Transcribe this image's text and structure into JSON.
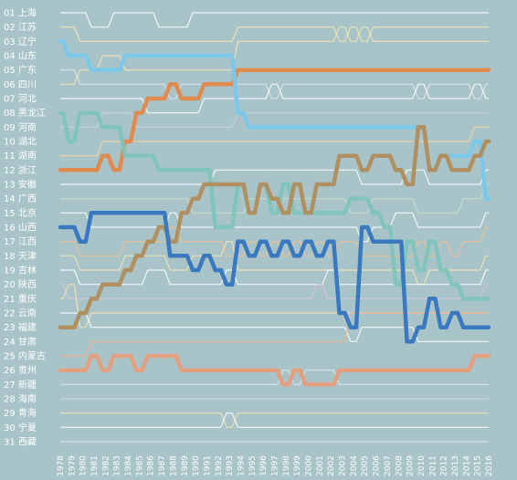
{
  "chart_data": {
    "type": "line",
    "title": "",
    "xlabel": "",
    "ylabel": "",
    "x": [
      "1978",
      "1979",
      "1980",
      "1981",
      "1982",
      "1983",
      "1984",
      "1985",
      "1986",
      "1987",
      "1988",
      "1989",
      "1990",
      "1991",
      "1992",
      "1993",
      "1994",
      "1995",
      "1996",
      "1997",
      "1998",
      "1999",
      "2000",
      "2001",
      "2002",
      "2003",
      "2004",
      "2005",
      "2006",
      "2007",
      "2008",
      "2009",
      "2010",
      "2011",
      "2012",
      "2013",
      "2014",
      "2015",
      "2016"
    ],
    "rank_labels": [
      "01 上海",
      "02 江苏",
      "03 辽宁",
      "04 山东",
      "05 广东",
      "06 四川",
      "07 河北",
      "08 黑龙江",
      "09 河南",
      "10 湖北",
      "11 湖南",
      "12 浙江",
      "13 安徽",
      "14 广西",
      "15 北京",
      "16 山西",
      "17 江西",
      "18 天津",
      "19 吉林",
      "20 陕西",
      "21 重庆",
      "22 云南",
      "23 福建",
      "24 甘肃",
      "25 内蒙古",
      "26 贵州",
      "27 新疆",
      "28 海南",
      "29 青海",
      "30 宁夏",
      "31 西藏"
    ],
    "ylim": [
      1,
      31
    ],
    "y_axis_inverted": true,
    "grid": false,
    "background": "#a9c4c8",
    "highlighted_series": [
      {
        "color": "#e08a50",
        "values": [
          12,
          12,
          12,
          12,
          11,
          12,
          10,
          8,
          7,
          7,
          6,
          7,
          7,
          6,
          6,
          6,
          5,
          5,
          5,
          5,
          5,
          5,
          5,
          5,
          5,
          5,
          5,
          5,
          5,
          5,
          5,
          5,
          5,
          5,
          5,
          5,
          5,
          5,
          5
        ]
      },
      {
        "color": "#7cc8ea",
        "values": [
          3,
          4,
          4,
          5,
          5,
          5,
          4,
          4,
          4,
          4,
          4,
          4,
          4,
          4,
          4,
          4,
          8,
          9,
          9,
          9,
          9,
          9,
          9,
          9,
          9,
          9,
          9,
          9,
          9,
          9,
          9,
          9,
          9,
          12,
          11,
          11,
          11,
          10,
          14
        ]
      },
      {
        "color": "#80c4bc",
        "values": [
          8,
          10,
          8,
          8,
          9,
          9,
          11,
          11,
          11,
          12,
          12,
          12,
          12,
          12,
          16,
          16,
          13,
          15,
          13,
          15,
          13,
          15,
          15,
          15,
          15,
          15,
          14,
          14,
          15,
          16,
          20,
          17,
          19,
          17,
          19,
          20,
          21,
          21,
          21
        ]
      },
      {
        "color": "#b09060",
        "values": [
          23,
          23,
          22,
          21,
          20,
          20,
          19,
          18,
          17,
          16,
          17,
          15,
          14,
          13,
          13,
          13,
          13,
          15,
          13,
          14,
          15,
          13,
          15,
          13,
          13,
          11,
          11,
          12,
          11,
          11,
          12,
          13,
          9,
          12,
          11,
          12,
          12,
          11,
          10
        ]
      },
      {
        "color": "#3a78c0",
        "values": [
          16,
          16,
          17,
          15,
          15,
          15,
          15,
          15,
          15,
          15,
          18,
          18,
          19,
          18,
          19,
          20,
          17,
          18,
          17,
          18,
          17,
          18,
          17,
          18,
          17,
          22,
          23,
          16,
          17,
          17,
          17,
          24,
          23,
          21,
          23,
          22,
          23,
          23,
          23
        ]
      },
      {
        "color": "#e2a080",
        "values": [
          26,
          26,
          26,
          25,
          26,
          25,
          25,
          26,
          25,
          25,
          25,
          26,
          26,
          26,
          26,
          26,
          26,
          26,
          26,
          26,
          27,
          26,
          27,
          27,
          27,
          26,
          26,
          26,
          26,
          26,
          26,
          26,
          26,
          26,
          26,
          26,
          26,
          25,
          25
        ]
      }
    ],
    "background_series": [
      {
        "color": "#ffffff",
        "values": [
          1,
          1,
          1,
          2,
          2,
          1,
          1,
          1,
          1,
          2,
          2,
          2,
          1,
          1,
          1,
          1,
          1,
          1,
          1,
          1,
          1,
          1,
          1,
          1,
          1,
          1,
          1,
          1,
          1,
          1,
          1,
          1,
          1,
          1,
          1,
          1,
          1,
          1,
          1
        ]
      },
      {
        "color": "#f6e6b4",
        "values": [
          2,
          2,
          3,
          3,
          3,
          3,
          3,
          3,
          3,
          3,
          3,
          3,
          3,
          3,
          3,
          3,
          2,
          2,
          2,
          2,
          2,
          2,
          2,
          2,
          2,
          3,
          2,
          3,
          2,
          2,
          2,
          2,
          2,
          2,
          2,
          2,
          2,
          2,
          2
        ]
      },
      {
        "color": "#dde8ec",
        "values": [
          5,
          5,
          6,
          6,
          6,
          6,
          6,
          6,
          6,
          6,
          7,
          6,
          6,
          6,
          6,
          6,
          6,
          6,
          6,
          7,
          6,
          6,
          6,
          6,
          6,
          6,
          6,
          6,
          6,
          6,
          6,
          6,
          7,
          6,
          6,
          6,
          6,
          7,
          6
        ]
      },
      {
        "color": "#f6e6b4",
        "values": [
          6,
          6,
          5,
          5,
          4,
          4,
          5,
          5,
          5,
          5,
          5,
          5,
          5,
          5,
          5,
          5,
          3,
          3,
          3,
          3,
          3,
          3,
          3,
          3,
          3,
          2,
          3,
          2,
          3,
          3,
          3,
          3,
          3,
          3,
          3,
          3,
          3,
          3,
          3
        ]
      },
      {
        "color": "#ffffff",
        "values": [
          7,
          7,
          7,
          7,
          7,
          7,
          7,
          7,
          8,
          8,
          8,
          8,
          8,
          7,
          7,
          7,
          7,
          7,
          7,
          6,
          7,
          7,
          7,
          7,
          7,
          7,
          7,
          7,
          7,
          7,
          7,
          7,
          6,
          7,
          7,
          7,
          7,
          6,
          7
        ]
      },
      {
        "color": "#c7d6da",
        "values": [
          9,
          9,
          9,
          9,
          8,
          8,
          8,
          9,
          9,
          9,
          9,
          9,
          9,
          9,
          9,
          9,
          8,
          8,
          8,
          8,
          8,
          8,
          8,
          8,
          8,
          8,
          8,
          8,
          8,
          8,
          8,
          8,
          8,
          8,
          8,
          8,
          8,
          8,
          8
        ]
      },
      {
        "color": "#f7d6a0",
        "values": [
          11,
          11,
          11,
          11,
          10,
          10,
          10,
          10,
          10,
          10,
          10,
          10,
          10,
          10,
          10,
          10,
          10,
          10,
          10,
          10,
          10,
          10,
          10,
          10,
          10,
          10,
          10,
          10,
          10,
          10,
          10,
          10,
          10,
          10,
          10,
          10,
          10,
          9,
          9
        ]
      },
      {
        "color": "#ffffff",
        "values": [
          13,
          13,
          13,
          13,
          13,
          13,
          13,
          13,
          13,
          13,
          13,
          13,
          13,
          13,
          12,
          12,
          12,
          12,
          12,
          12,
          12,
          12,
          12,
          12,
          12,
          12,
          12,
          13,
          13,
          13,
          13,
          12,
          12,
          13,
          13,
          13,
          13,
          13,
          12
        ]
      },
      {
        "color": "#c7e0d0",
        "values": [
          14,
          14,
          14,
          14,
          14,
          14,
          14,
          14,
          14,
          14,
          14,
          14,
          15,
          15,
          15,
          15,
          15,
          14,
          14,
          14,
          14,
          14,
          14,
          14,
          14,
          14,
          15,
          15,
          14,
          14,
          14,
          14,
          15,
          15,
          15,
          15,
          14,
          14,
          13
        ]
      },
      {
        "color": "#ffffff",
        "values": [
          15,
          15,
          15,
          16,
          16,
          16,
          16,
          16,
          16,
          16,
          15,
          16,
          16,
          16,
          16,
          16,
          16,
          16,
          16,
          16,
          16,
          16,
          16,
          16,
          16,
          16,
          16,
          17,
          16,
          16,
          15,
          15,
          16,
          16,
          16,
          16,
          16,
          16,
          15
        ]
      },
      {
        "color": "#f2c090",
        "values": [
          17,
          17,
          18,
          18,
          18,
          18,
          17,
          17,
          17,
          17,
          16,
          17,
          17,
          17,
          17,
          18,
          18,
          17,
          18,
          17,
          18,
          17,
          18,
          17,
          18,
          17,
          17,
          18,
          18,
          18,
          18,
          18,
          17,
          18,
          17,
          18,
          17,
          17,
          16
        ]
      },
      {
        "color": "#f6e6b4",
        "values": [
          18,
          18,
          19,
          19,
          19,
          19,
          18,
          18,
          18,
          18,
          19,
          19,
          18,
          18,
          18,
          17,
          19,
          19,
          19,
          19,
          19,
          19,
          19,
          19,
          19,
          19,
          19,
          19,
          19,
          19,
          19,
          19,
          20,
          19,
          19,
          19,
          19,
          19,
          18
        ]
      },
      {
        "color": "#ffffff",
        "values": [
          19,
          19,
          20,
          20,
          20,
          20,
          20,
          20,
          19,
          19,
          20,
          20,
          20,
          20,
          20,
          19,
          20,
          20,
          20,
          20,
          20,
          20,
          20,
          20,
          19,
          20,
          20,
          20,
          20,
          20,
          20,
          20,
          20,
          20,
          20,
          20,
          20,
          20,
          19
        ]
      },
      {
        "color": "#d8c4e0",
        "values": [
          20,
          21,
          21,
          21,
          21,
          21,
          21,
          21,
          21,
          21,
          21,
          21,
          21,
          21,
          21,
          21,
          21,
          21,
          21,
          21,
          21,
          21,
          21,
          20,
          21,
          21,
          21,
          21,
          21,
          21,
          21,
          21,
          21,
          21,
          21,
          21,
          21,
          21,
          20
        ]
      },
      {
        "color": "#f6e6b4",
        "values": [
          21,
          20,
          23,
          22,
          22,
          22,
          22,
          22,
          22,
          22,
          22,
          22,
          22,
          22,
          22,
          22,
          22,
          22,
          22,
          22,
          22,
          22,
          22,
          22,
          22,
          22,
          22,
          22,
          22,
          22,
          22,
          22,
          22,
          22,
          22,
          22,
          22,
          22,
          22
        ]
      },
      {
        "color": "#ffffff",
        "values": [
          22,
          22,
          22,
          23,
          23,
          23,
          23,
          23,
          23,
          23,
          23,
          23,
          23,
          23,
          23,
          23,
          23,
          23,
          23,
          23,
          23,
          23,
          23,
          23,
          23,
          23,
          24,
          23,
          23,
          23,
          23,
          23,
          24,
          24,
          24,
          24,
          24,
          24,
          24
        ]
      },
      {
        "color": "#f7b088",
        "values": [
          25,
          25,
          25,
          24,
          24,
          24,
          24,
          24,
          24,
          24,
          24,
          24,
          24,
          24,
          24,
          24,
          24,
          24,
          24,
          24,
          24,
          24,
          24,
          24,
          24,
          24,
          22,
          22,
          22,
          22,
          22,
          22,
          22,
          22,
          22,
          22,
          22,
          22,
          22
        ]
      },
      {
        "color": "#dde8ec",
        "values": [
          27,
          27,
          27,
          27,
          27,
          27,
          27,
          27,
          27,
          27,
          27,
          27,
          27,
          27,
          27,
          27,
          27,
          27,
          27,
          27,
          26,
          27,
          26,
          26,
          26,
          27,
          27,
          27,
          27,
          27,
          27,
          27,
          27,
          27,
          27,
          27,
          27,
          27,
          27
        ]
      },
      {
        "color": "#cfd8dc",
        "values": [
          28,
          28,
          28,
          28,
          28,
          28,
          28,
          28,
          28,
          28,
          28,
          28,
          28,
          28,
          28,
          28,
          28,
          28,
          28,
          28,
          28,
          28,
          28,
          28,
          28,
          28,
          28,
          28,
          28,
          28,
          28,
          28,
          28,
          28,
          28,
          28,
          28,
          28,
          28
        ]
      },
      {
        "color": "#f6e6b4",
        "values": [
          29,
          29,
          29,
          29,
          29,
          29,
          29,
          29,
          29,
          29,
          29,
          29,
          29,
          29,
          29,
          30,
          29,
          29,
          29,
          29,
          29,
          29,
          29,
          29,
          29,
          29,
          29,
          29,
          29,
          29,
          29,
          29,
          29,
          29,
          29,
          29,
          29,
          29,
          29
        ]
      },
      {
        "color": "#ffffff",
        "values": [
          30,
          30,
          30,
          30,
          30,
          30,
          30,
          30,
          30,
          30,
          30,
          30,
          30,
          30,
          30,
          29,
          30,
          30,
          30,
          30,
          30,
          30,
          30,
          30,
          30,
          30,
          30,
          30,
          30,
          30,
          30,
          30,
          30,
          30,
          30,
          30,
          30,
          30,
          30
        ]
      },
      {
        "color": "#dde8ec",
        "values": [
          31,
          31,
          31,
          31,
          31,
          31,
          31,
          31,
          31,
          31,
          31,
          31,
          31,
          31,
          31,
          31,
          31,
          31,
          31,
          31,
          31,
          31,
          31,
          31,
          31,
          31,
          31,
          31,
          31,
          31,
          31,
          31,
          31,
          31,
          31,
          31,
          31,
          31,
          31
        ]
      }
    ]
  }
}
